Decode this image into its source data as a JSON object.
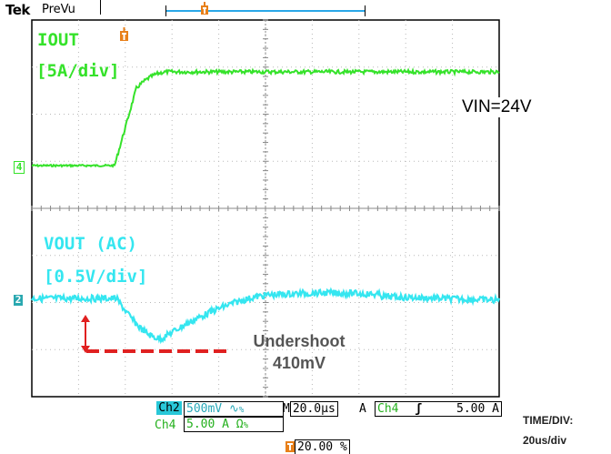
{
  "header": {
    "brand": "Tek",
    "mode": "PreVu"
  },
  "channels": {
    "iout": {
      "title": "IOUT",
      "scale": "[5A/div]",
      "marker": "4",
      "color": "#35e22a"
    },
    "vout": {
      "title": "VOUT (AC)",
      "scale": "[0.5V/div]",
      "marker": "2",
      "color": "#35e6f0"
    }
  },
  "annotations": {
    "vin": "VIN=24V",
    "undershoot_line1": "Undershoot",
    "undershoot_line2": "410mV"
  },
  "status": {
    "ch2_label": "Ch2",
    "ch2_scale": "500mV",
    "ch2_coupling": "∿",
    "ch2_bw": "%",
    "timebase_prefix": "M",
    "timebase": "20.0µs",
    "acq": "A",
    "trig_ch": "Ch4",
    "trig_slope": "ʃ",
    "trig_level": "5.00 A",
    "ch4_label": "Ch4",
    "ch4_scale": "5.00 A",
    "ch4_coupling": "Ω",
    "ch4_bw": "%",
    "trigger_pos": "20.00 %"
  },
  "side": {
    "time_div_label": "TIME/DIV:",
    "time_div_value": "20us/div"
  }
}
